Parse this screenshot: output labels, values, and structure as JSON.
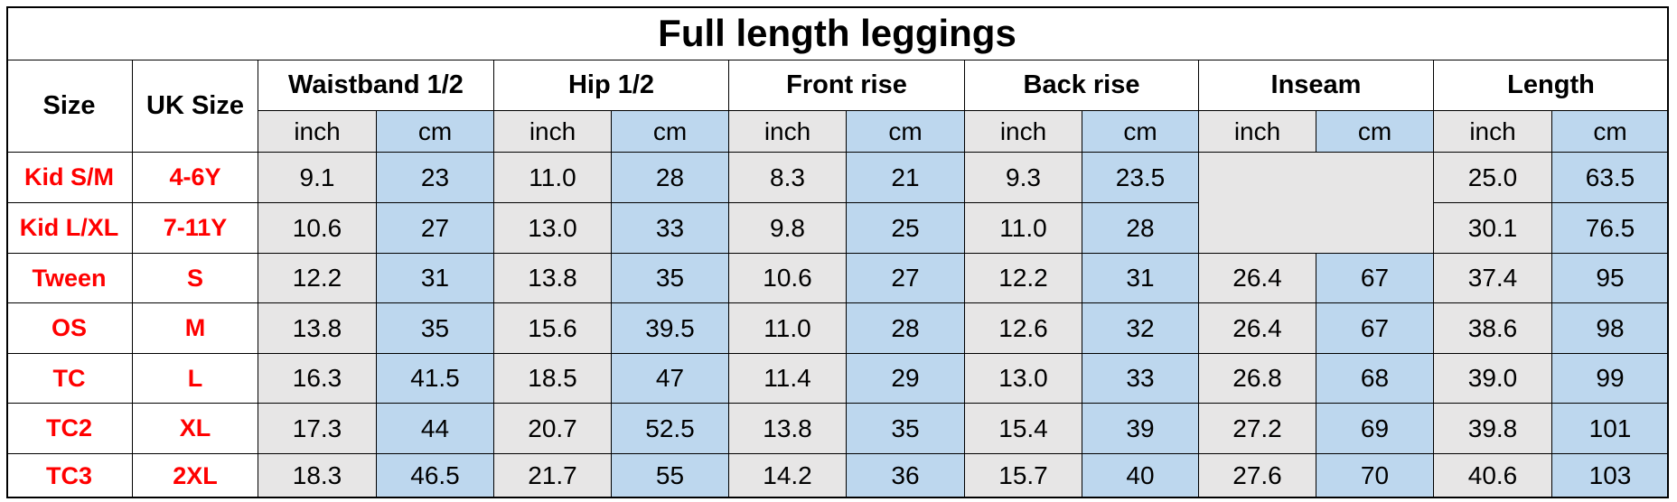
{
  "title": "Full length leggings",
  "header": {
    "size": "Size",
    "uk_size": "UK Size",
    "groups": [
      "Waistband 1/2",
      "Hip 1/2",
      "Front rise",
      "Back rise",
      "Inseam",
      "Length"
    ],
    "units": [
      "inch",
      "cm"
    ]
  },
  "rows": [
    {
      "size": "Kid S/M",
      "uk_size": "4-6Y",
      "values": [
        "9.1",
        "23",
        "11.0",
        "28",
        "8.3",
        "21",
        "9.3",
        "23.5",
        null,
        null,
        "25.0",
        "63.5"
      ]
    },
    {
      "size": "Kid L/XL",
      "uk_size": "7-11Y",
      "values": [
        "10.6",
        "27",
        "13.0",
        "33",
        "9.8",
        "25",
        "11.0",
        "28",
        null,
        null,
        "30.1",
        "76.5"
      ]
    },
    {
      "size": "Tween",
      "uk_size": "S",
      "values": [
        "12.2",
        "31",
        "13.8",
        "35",
        "10.6",
        "27",
        "12.2",
        "31",
        "26.4",
        "67",
        "37.4",
        "95"
      ]
    },
    {
      "size": "OS",
      "uk_size": "M",
      "values": [
        "13.8",
        "35",
        "15.6",
        "39.5",
        "11.0",
        "28",
        "12.6",
        "32",
        "26.4",
        "67",
        "38.6",
        "98"
      ]
    },
    {
      "size": "TC",
      "uk_size": "L",
      "values": [
        "16.3",
        "41.5",
        "18.5",
        "47",
        "11.4",
        "29",
        "13.0",
        "33",
        "26.8",
        "68",
        "39.0",
        "99"
      ]
    },
    {
      "size": "TC2",
      "uk_size": "XL",
      "values": [
        "17.3",
        "44",
        "20.7",
        "52.5",
        "13.8",
        "35",
        "15.4",
        "39",
        "27.2",
        "69",
        "39.8",
        "101"
      ]
    },
    {
      "size": "TC3",
      "uk_size": "2XL",
      "values": [
        "18.3",
        "46.5",
        "21.7",
        "55",
        "14.2",
        "36",
        "15.7",
        "40",
        "27.6",
        "70",
        "40.6",
        "103"
      ]
    }
  ]
}
